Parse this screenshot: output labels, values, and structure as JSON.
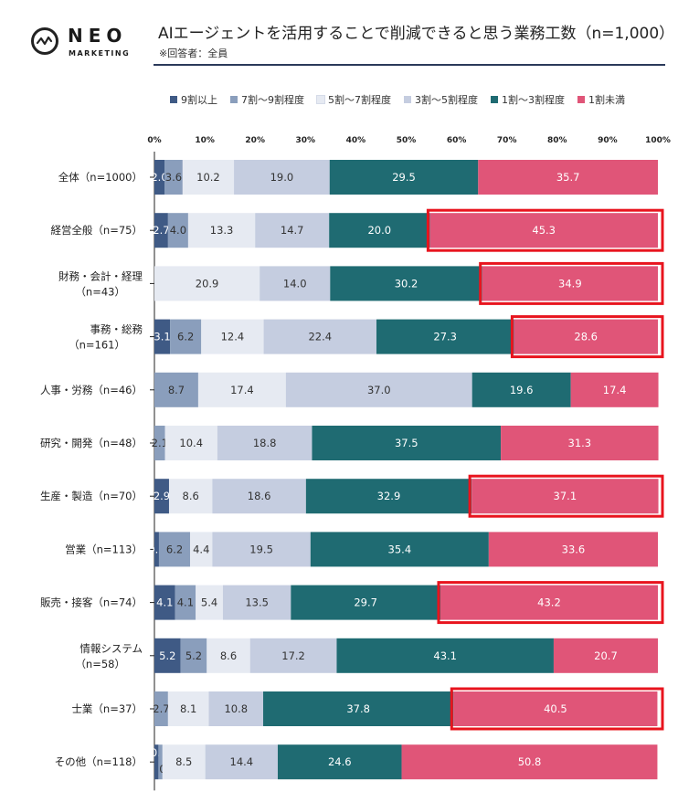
{
  "brand": {
    "name": "NEO",
    "sub": "MARKETING"
  },
  "header": {
    "title": "AIエージェントを活用することで削減できると思う業務工数（n=1,000）",
    "subtitle": "※回答者：全員"
  },
  "colors": {
    "series": [
      "#3f5a85",
      "#8a9ebc",
      "#e6eaf2",
      "#c5cde0",
      "#1f6b72",
      "#e05578"
    ],
    "highlight": "#e8141e",
    "axis": "#222222"
  },
  "chart_data": {
    "type": "bar",
    "orientation": "horizontal-stacked-100",
    "title": "AIエージェントを活用することで削減できると思う業務工数（n=1,000）",
    "xlim": [
      0,
      100
    ],
    "x_ticks": [
      "0%",
      "10%",
      "20%",
      "30%",
      "40%",
      "50%",
      "60%",
      "70%",
      "80%",
      "90%",
      "100%"
    ],
    "legend_position": "top",
    "categories": [
      [
        "全体（n=1000）"
      ],
      [
        "経営全般（n=75）"
      ],
      [
        "財務・会計・経理",
        "（n=43）"
      ],
      [
        "事務・総務",
        "（n=161）"
      ],
      [
        "人事・労務（n=46）"
      ],
      [
        "研究・開発（n=48）"
      ],
      [
        "生産・製造（n=70）"
      ],
      [
        "営業（n=113）"
      ],
      [
        "販売・接客（n=74）"
      ],
      [
        "情報システム",
        "（n=58）"
      ],
      [
        "士業（n=37）"
      ],
      [
        "その他（n=118）"
      ]
    ],
    "series": [
      {
        "name": "9割以上",
        "values": [
          2.0,
          2.7,
          0.0,
          3.1,
          0.0,
          0.0,
          2.9,
          0.9,
          4.1,
          5.2,
          0.0,
          0.8
        ]
      },
      {
        "name": "7割～9割程度",
        "values": [
          3.6,
          4.0,
          0.0,
          6.2,
          8.7,
          2.1,
          0.0,
          6.2,
          4.1,
          5.2,
          2.7,
          0.8
        ]
      },
      {
        "name": "5割～7割程度",
        "values": [
          10.2,
          13.3,
          20.9,
          12.4,
          17.4,
          10.4,
          8.6,
          4.4,
          5.4,
          8.6,
          8.1,
          8.5
        ]
      },
      {
        "name": "3割～5割程度",
        "values": [
          19.0,
          14.7,
          14.0,
          22.4,
          37.0,
          18.8,
          18.6,
          19.5,
          13.5,
          17.2,
          10.8,
          14.4
        ]
      },
      {
        "name": "1割～3割程度",
        "values": [
          29.5,
          20.0,
          30.2,
          27.3,
          19.6,
          37.5,
          32.9,
          35.4,
          29.7,
          43.1,
          37.8,
          24.6
        ]
      },
      {
        "name": "1割未満",
        "values": [
          35.7,
          45.3,
          34.9,
          28.6,
          17.4,
          31.3,
          37.1,
          33.6,
          43.2,
          20.7,
          40.5,
          50.8
        ]
      }
    ],
    "labels": [
      [
        "2.0",
        "3.6",
        "10.2",
        "19.0",
        "29.5",
        "35.7"
      ],
      [
        "2.7",
        "4.0",
        "13.3",
        "14.7",
        "20.0",
        "45.3"
      ],
      [
        "",
        "",
        "20.9",
        "14.0",
        "30.2",
        "34.9"
      ],
      [
        "3.1",
        "6.2",
        "12.4",
        "22.4",
        "27.3",
        "28.6"
      ],
      [
        "",
        "8.7",
        "17.4",
        "37.0",
        "19.6",
        "17.4"
      ],
      [
        "",
        "2.1",
        "10.4",
        "18.8",
        "37.5",
        "31.3"
      ],
      [
        "2.9",
        "",
        "8.6",
        "18.6",
        "32.9",
        "37.1"
      ],
      [
        "0.9",
        "6.2",
        "4.4",
        "19.5",
        "35.4",
        "33.6"
      ],
      [
        "4.1",
        "4.1",
        "5.4",
        "13.5",
        "29.7",
        "43.2"
      ],
      [
        "5.2",
        "5.2",
        "8.6",
        "17.2",
        "43.1",
        "20.7"
      ],
      [
        "",
        "2.7",
        "8.1",
        "10.8",
        "37.8",
        "40.5"
      ],
      [
        "0.8",
        "0.8",
        "8.5",
        "14.4",
        "24.6",
        "50.8"
      ]
    ],
    "highlighted_rows": [
      1,
      2,
      3,
      6,
      8,
      10
    ]
  }
}
